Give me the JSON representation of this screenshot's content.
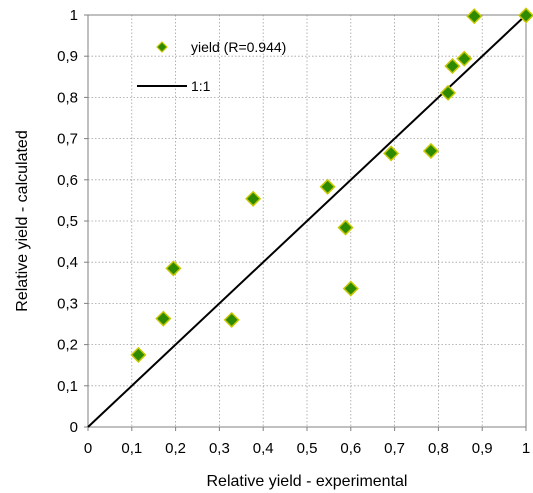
{
  "chart_data": {
    "type": "scatter",
    "title": "",
    "xlabel": "Relative yield - experimental",
    "ylabel": "Relative yield - calculated",
    "xlim": [
      0,
      1
    ],
    "ylim": [
      0,
      1
    ],
    "x_ticks": [
      "0",
      "0,1",
      "0,2",
      "0,3",
      "0,4",
      "0,5",
      "0,6",
      "0,7",
      "0,8",
      "0,9",
      "1"
    ],
    "y_ticks": [
      "0",
      "0,1",
      "0,2",
      "0,3",
      "0,4",
      "0,5",
      "0,6",
      "0,7",
      "0,8",
      "0,9",
      "1"
    ],
    "grid": true,
    "grid_style": "dotted",
    "legend_position": "top-left",
    "series": [
      {
        "name": "yield (R=0.944)",
        "kind": "scatter",
        "marker": "diamond",
        "color": "#2e8b00",
        "edge_color": "#c8c800",
        "points": [
          {
            "x": 0.115,
            "y": 0.175
          },
          {
            "x": 0.172,
            "y": 0.263
          },
          {
            "x": 0.195,
            "y": 0.385
          },
          {
            "x": 0.328,
            "y": 0.26
          },
          {
            "x": 0.377,
            "y": 0.554
          },
          {
            "x": 0.547,
            "y": 0.583
          },
          {
            "x": 0.588,
            "y": 0.484
          },
          {
            "x": 0.6,
            "y": 0.336
          },
          {
            "x": 0.692,
            "y": 0.664
          },
          {
            "x": 0.783,
            "y": 0.67
          },
          {
            "x": 0.822,
            "y": 0.811
          },
          {
            "x": 0.832,
            "y": 0.876
          },
          {
            "x": 0.859,
            "y": 0.894
          },
          {
            "x": 0.882,
            "y": 0.997
          },
          {
            "x": 1.0,
            "y": 0.999
          }
        ]
      },
      {
        "name": "1:1",
        "kind": "line",
        "color": "#000000",
        "points": [
          {
            "x": 0,
            "y": 0
          },
          {
            "x": 1,
            "y": 1
          }
        ]
      }
    ]
  }
}
